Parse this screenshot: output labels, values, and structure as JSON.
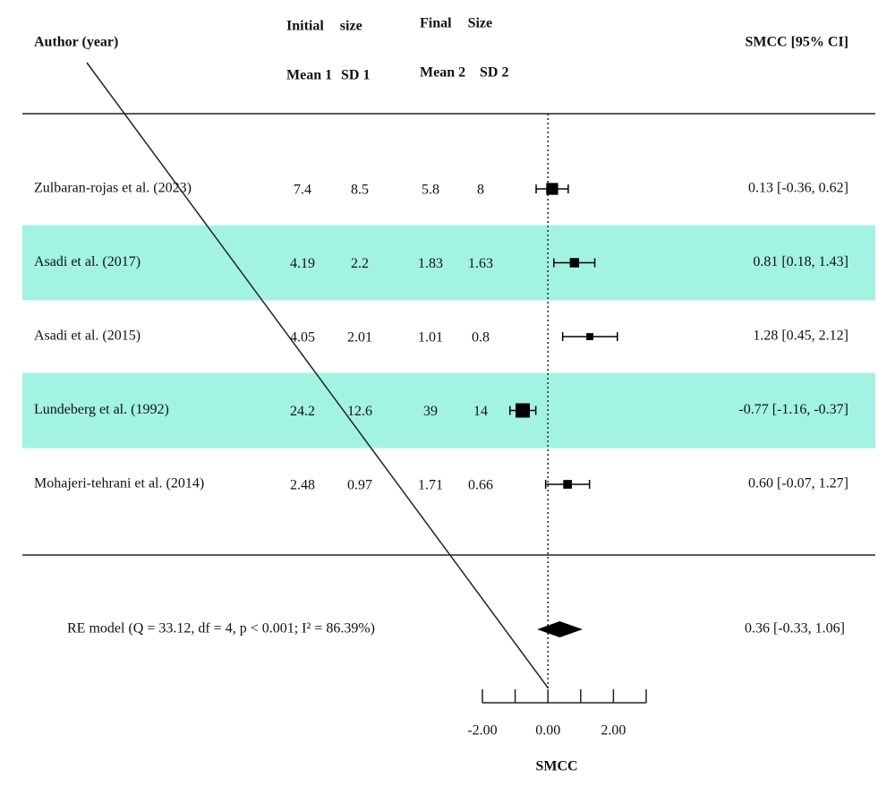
{
  "chart_data": {
    "type": "forest",
    "headers": {
      "author": "Author (year)",
      "initial": "Initial size",
      "final": "Final Size",
      "mean1": "Mean 1",
      "sd1": "SD 1",
      "mean2": "Mean 2",
      "sd2": "SD 2",
      "estimate": "SMCC [95% CI]"
    },
    "categories": [
      "Zulbaran-rojas et al. (2023)",
      "Asadi et al. (2017)",
      "Asadi et al. (2015)",
      "Lundeberg et al. (1992)",
      "Mohajeri-tehrani et al. (2014)"
    ],
    "mean1": [
      7.4,
      4.19,
      4.05,
      24.2,
      2.48
    ],
    "sd1": [
      8.5,
      2.2,
      2.01,
      12.6,
      0.97
    ],
    "mean2": [
      5.8,
      1.83,
      1.01,
      39,
      1.71
    ],
    "sd2": [
      8,
      1.63,
      0.8,
      14,
      0.66
    ],
    "values": [
      0.13,
      0.81,
      1.28,
      -0.77,
      0.6
    ],
    "ci_lower": [
      -0.36,
      0.18,
      0.45,
      -1.16,
      -0.07
    ],
    "ci_upper": [
      0.62,
      1.43,
      2.12,
      -0.37,
      1.27
    ],
    "value_labels": [
      "0.13 [-0.36, 0.62]",
      "0.81 [0.18, 1.43]",
      "1.28 [0.45, 2.12]",
      "-0.77 [-1.16, -0.37]",
      "0.60 [-0.07, 1.27]"
    ],
    "summary": {
      "label": "RE model (Q = 33.12, df = 4, p < 0.001; I² = 86.39%)",
      "value": 0.36,
      "ci_lower": -0.33,
      "ci_upper": 1.06,
      "value_label": "0.36 [-0.33, 1.06]"
    },
    "xlim": [
      -2,
      3
    ],
    "xticks": [
      {
        "value": -2,
        "label": "-2.00"
      },
      {
        "value": 0,
        "label": "0.00"
      },
      {
        "value": 2,
        "label": "2.00"
      }
    ],
    "xminorticks": [
      -1,
      1,
      3
    ],
    "xlabel": "SMCC",
    "color": "#000000",
    "highlight_color": "#a2f3e2"
  }
}
